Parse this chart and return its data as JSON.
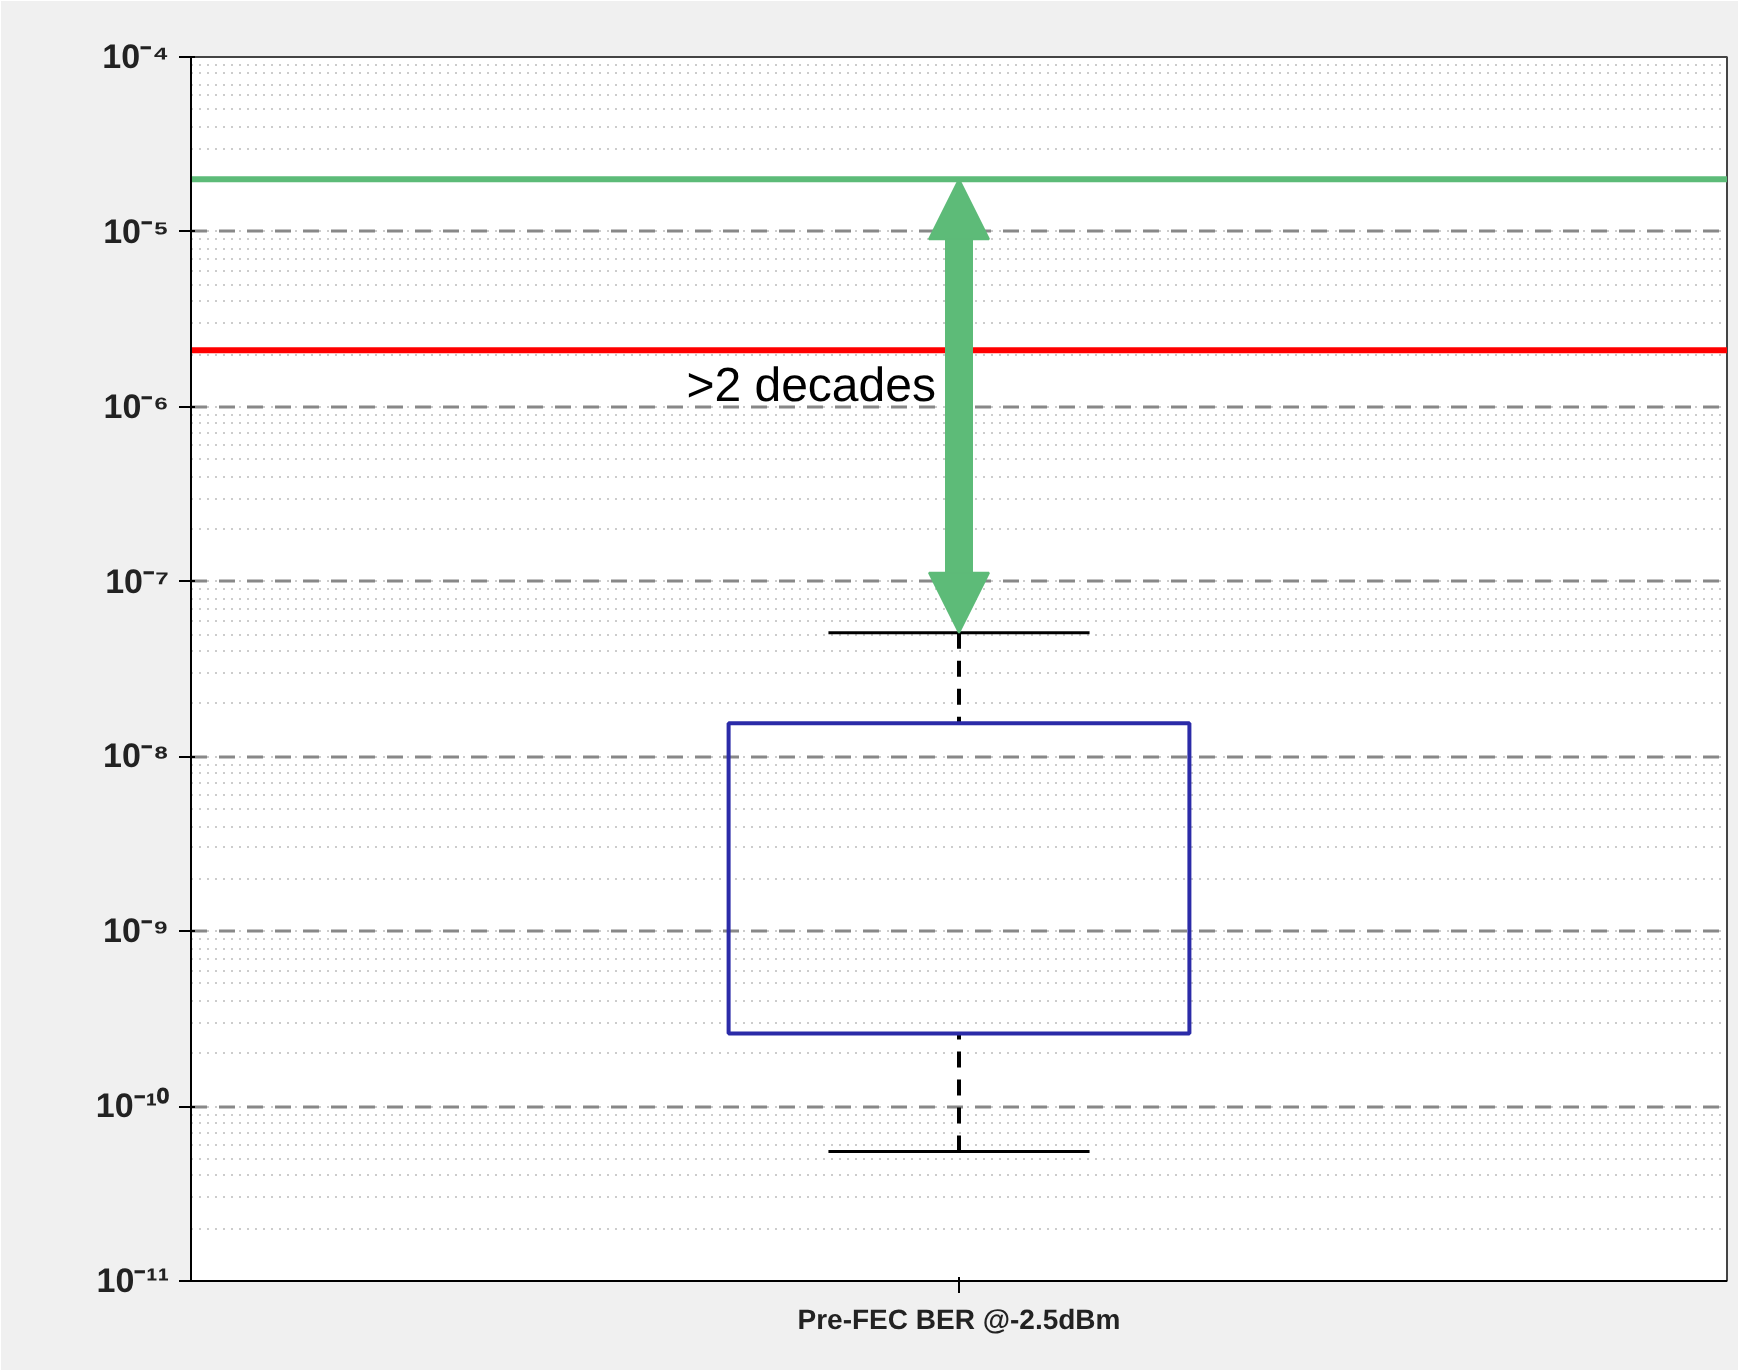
{
  "chart_data": {
    "type": "box",
    "categories": [
      "Pre-FEC BER @-2.5dBm"
    ],
    "series": [
      {
        "color": "#2b2ba8",
        "boxes": [
          {
            "low": 5.5e-11,
            "q1": 2.6e-10,
            "q3": 1.55e-08,
            "high": 5.1e-08
          }
        ]
      }
    ],
    "log": "y",
    "ylim": [
      1e-11,
      0.0001
    ],
    "yticks": [
      {
        "value": 1e-11,
        "label": "10⁻¹¹"
      },
      {
        "value": 1e-10,
        "label": "10⁻¹⁰"
      },
      {
        "value": 1e-09,
        "label": "10⁻⁹"
      },
      {
        "value": 1e-08,
        "label": "10⁻⁸"
      },
      {
        "value": 1e-07,
        "label": "10⁻⁷"
      },
      {
        "value": 1e-06,
        "label": "10⁻⁶"
      },
      {
        "value": 1e-05,
        "label": "10⁻⁵"
      },
      {
        "value": 0.0001,
        "label": "10⁻⁴"
      }
    ],
    "grid": "y",
    "ref_lines": [
      {
        "axis": "y",
        "value": 2e-05,
        "color": "#5dbb78"
      },
      {
        "axis": "y",
        "value": 2.1e-06,
        "color": "#ff0000"
      }
    ],
    "annotations": [
      ">2 decades"
    ]
  }
}
